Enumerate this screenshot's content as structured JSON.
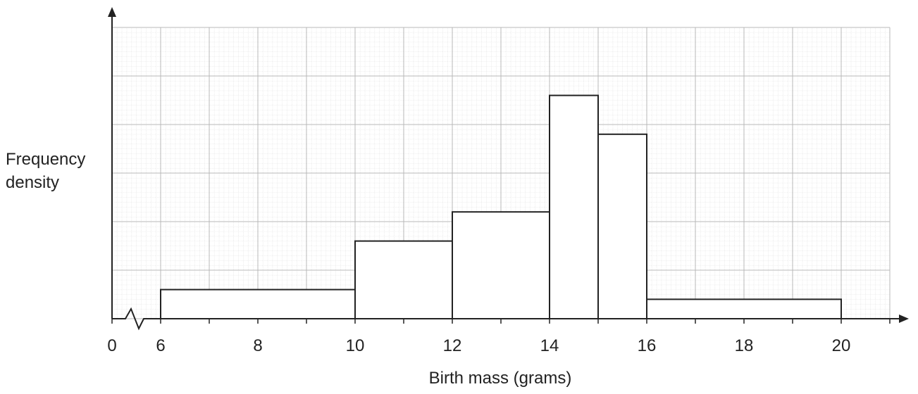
{
  "chart_data": {
    "type": "bar",
    "variant": "histogram",
    "ylabel_lines": [
      "Frequency",
      "density"
    ],
    "xlabel": "Birth mass (grams)",
    "x_ticks": [
      "0",
      "6",
      "8",
      "10",
      "12",
      "14",
      "16",
      "18",
      "20"
    ],
    "axis_break": true,
    "grid": true,
    "x_range": [
      6,
      21
    ],
    "y_range": [
      0,
      12
    ],
    "bins": [
      {
        "from": 6,
        "to": 10,
        "density": 1.2
      },
      {
        "from": 10,
        "to": 12,
        "density": 3.2
      },
      {
        "from": 12,
        "to": 14,
        "density": 4.4
      },
      {
        "from": 14,
        "to": 15,
        "density": 9.2
      },
      {
        "from": 15,
        "to": 16,
        "density": 7.6
      },
      {
        "from": 16,
        "to": 20,
        "density": 0.8
      }
    ],
    "colors": {
      "bar_fill": "#ffffff",
      "bar_stroke": "#222222",
      "grid": "#b8b8b8",
      "axis": "#222222"
    }
  }
}
